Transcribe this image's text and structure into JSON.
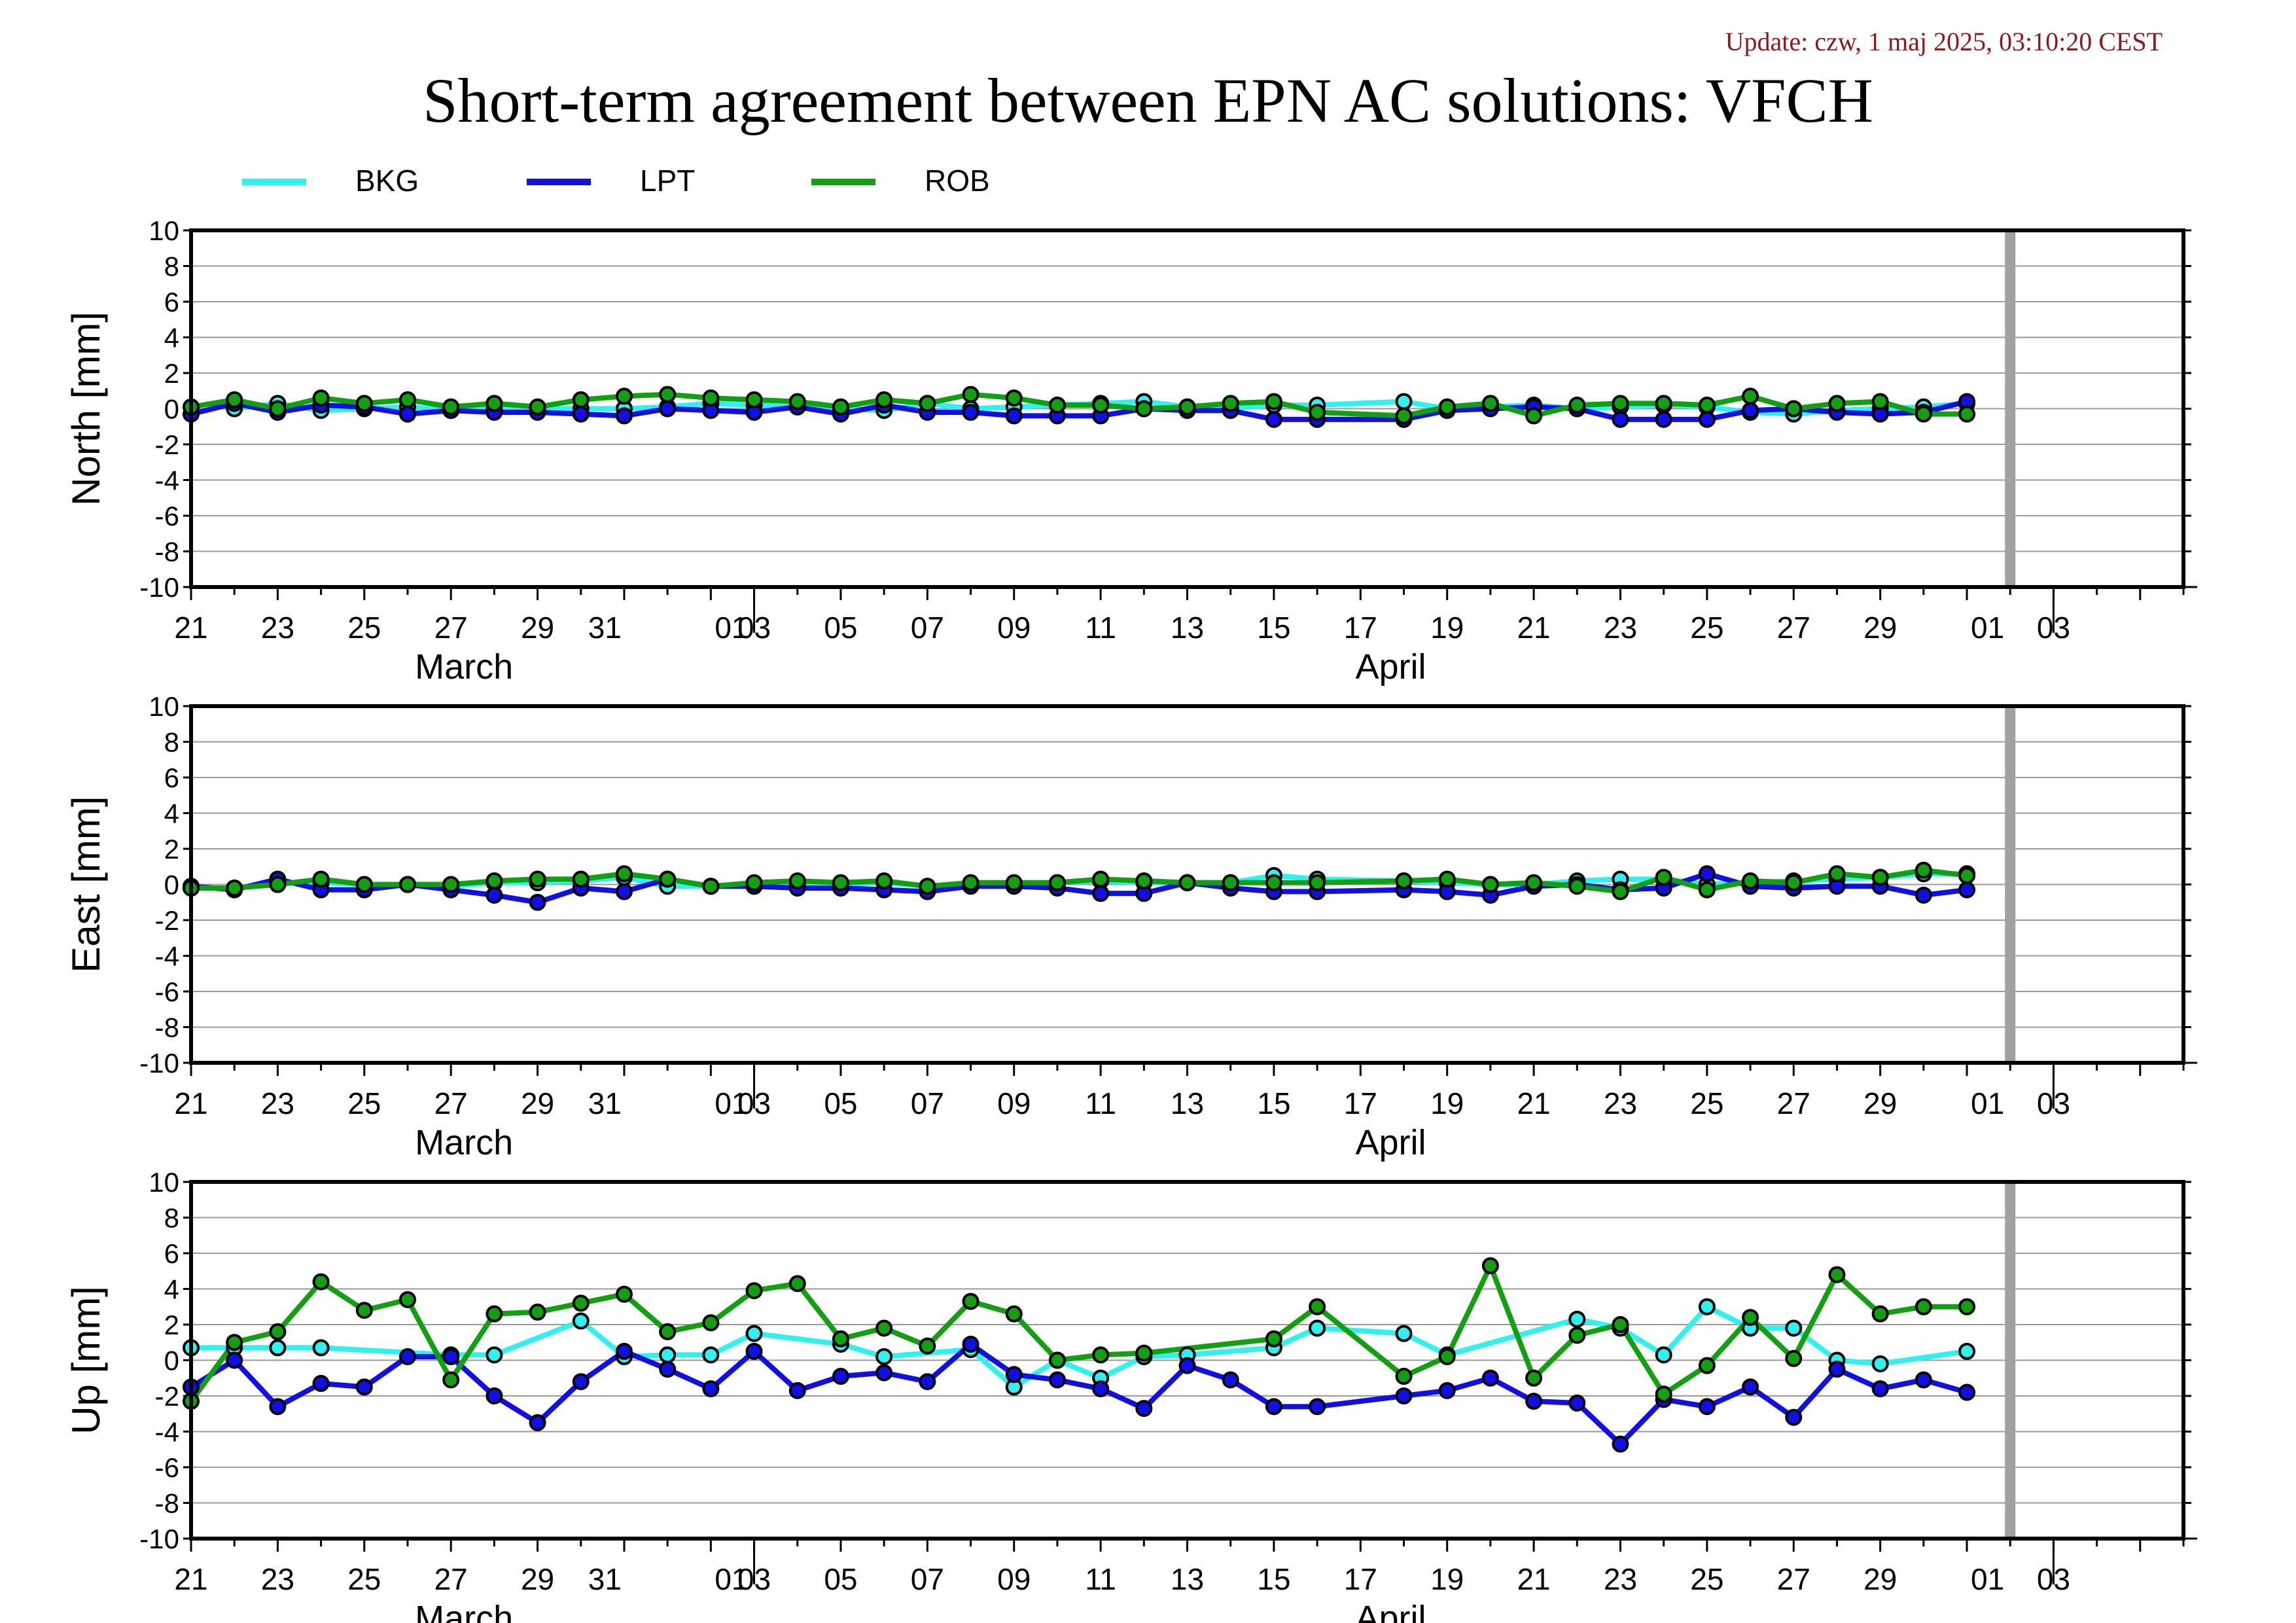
{
  "update_text": "Update: czw, 1 maj 2025, 03:10:20 CEST",
  "title": "Short-term agreement between EPN AC solutions: VFCH",
  "colors": {
    "BKG": "#2ef2f2",
    "LPT": "#1010e6",
    "ROB": "#10a010",
    "gap_bar": "#a0a0a0",
    "grid": "#999999"
  },
  "legend": [
    {
      "name": "BKG",
      "color": "#2ef2f2"
    },
    {
      "name": "LPT",
      "color": "#1010e6"
    },
    {
      "name": "ROB",
      "color": "#10a010"
    }
  ],
  "chart_data": [
    {
      "type": "line",
      "ylabel": "North [mm]",
      "ylim": [
        -10,
        10
      ],
      "yticks": [
        10,
        8,
        6,
        4,
        2,
        0,
        -2,
        -4,
        -6,
        -8,
        -10
      ],
      "xlim": [
        "2025-03-19",
        "2025-05-04"
      ],
      "x_tick_labels": [
        "21",
        "23",
        "25",
        "27",
        "29",
        "31",
        "01",
        "03",
        "05",
        "07",
        "09",
        "11",
        "13",
        "15",
        "17",
        "19",
        "21",
        "23",
        "25",
        "27",
        "29",
        "01",
        "03"
      ],
      "month_labels": [
        "March",
        "April"
      ],
      "grid": "horizontal",
      "data_gap_marker": "2025-04-30",
      "series": [
        {
          "name": "BKG",
          "x": [
            "2025-03-20",
            "2025-03-21",
            "2025-03-22",
            "2025-03-23",
            "2025-03-24",
            "2025-03-25",
            "2025-03-26",
            "2025-03-27",
            "2025-03-28",
            "2025-03-29",
            "2025-03-30",
            "2025-03-31",
            "2025-04-01",
            "2025-04-02",
            "2025-04-03",
            "2025-04-04",
            "2025-04-05",
            "2025-04-06",
            "2025-04-07",
            "2025-04-08",
            "2025-04-09",
            "2025-04-10",
            "2025-04-11",
            "2025-04-12",
            "2025-04-13",
            "2025-04-14",
            "2025-04-16",
            "2025-04-17",
            "2025-04-18",
            "2025-04-19",
            "2025-04-20",
            "2025-04-21",
            "2025-04-22",
            "2025-04-23",
            "2025-04-24",
            "2025-04-25",
            "2025-04-26",
            "2025-04-27",
            "2025-04-28",
            "2025-04-29"
          ],
          "values": [
            0.0,
            0.3,
            -0.1,
            0.0,
            0.1,
            -0.1,
            0.0,
            0.0,
            0.0,
            0.0,
            0.1,
            0.3,
            0.2,
            0.1,
            0.0,
            -0.1,
            0.3,
            0.0,
            0.1,
            0.2,
            0.3,
            0.4,
            0.1,
            0.0,
            0.2,
            0.2,
            0.4,
            0.0,
            0.1,
            0.2,
            0.0,
            0.1,
            0.2,
            0.1,
            -0.2,
            -0.3,
            -0.1,
            0.0,
            0.1,
            0.3
          ]
        },
        {
          "name": "LPT",
          "x": [
            "2025-03-19",
            "2025-03-20",
            "2025-03-21",
            "2025-03-22",
            "2025-03-23",
            "2025-03-24",
            "2025-03-25",
            "2025-03-26",
            "2025-03-27",
            "2025-03-28",
            "2025-03-29",
            "2025-03-30",
            "2025-03-31",
            "2025-04-01",
            "2025-04-02",
            "2025-04-03",
            "2025-04-04",
            "2025-04-05",
            "2025-04-06",
            "2025-04-07",
            "2025-04-08",
            "2025-04-09",
            "2025-04-10",
            "2025-04-11",
            "2025-04-12",
            "2025-04-13",
            "2025-04-14",
            "2025-04-16",
            "2025-04-17",
            "2025-04-18",
            "2025-04-19",
            "2025-04-20",
            "2025-04-21",
            "2025-04-22",
            "2025-04-23",
            "2025-04-24",
            "2025-04-25",
            "2025-04-26",
            "2025-04-27",
            "2025-04-28",
            "2025-04-29"
          ],
          "values": [
            -0.3,
            0.3,
            -0.2,
            0.2,
            0.1,
            -0.3,
            -0.1,
            -0.2,
            -0.2,
            -0.3,
            -0.4,
            0.0,
            -0.1,
            -0.2,
            0.1,
            -0.3,
            0.2,
            -0.2,
            -0.2,
            -0.4,
            -0.4,
            -0.4,
            0.0,
            -0.1,
            -0.1,
            -0.6,
            -0.6,
            -0.6,
            -0.1,
            0.0,
            0.1,
            0.0,
            -0.6,
            -0.6,
            -0.6,
            -0.1,
            0.0,
            -0.2,
            -0.3,
            -0.2,
            0.4
          ]
        },
        {
          "name": "ROB",
          "x": [
            "2025-03-19",
            "2025-03-20",
            "2025-03-21",
            "2025-03-22",
            "2025-03-23",
            "2025-03-24",
            "2025-03-25",
            "2025-03-26",
            "2025-03-27",
            "2025-03-28",
            "2025-03-29",
            "2025-03-30",
            "2025-03-31",
            "2025-04-01",
            "2025-04-02",
            "2025-04-03",
            "2025-04-04",
            "2025-04-05",
            "2025-04-06",
            "2025-04-07",
            "2025-04-08",
            "2025-04-09",
            "2025-04-10",
            "2025-04-11",
            "2025-04-12",
            "2025-04-13",
            "2025-04-14",
            "2025-04-16",
            "2025-04-17",
            "2025-04-18",
            "2025-04-19",
            "2025-04-20",
            "2025-04-21",
            "2025-04-22",
            "2025-04-23",
            "2025-04-24",
            "2025-04-25",
            "2025-04-26",
            "2025-04-27",
            "2025-04-28",
            "2025-04-29"
          ],
          "values": [
            0.1,
            0.5,
            0.0,
            0.6,
            0.3,
            0.5,
            0.1,
            0.3,
            0.1,
            0.5,
            0.7,
            0.8,
            0.6,
            0.5,
            0.4,
            0.1,
            0.5,
            0.3,
            0.8,
            0.6,
            0.2,
            0.2,
            0.0,
            0.1,
            0.3,
            0.4,
            -0.2,
            -0.4,
            0.1,
            0.3,
            -0.4,
            0.2,
            0.3,
            0.3,
            0.2,
            0.7,
            0.0,
            0.3,
            0.4,
            -0.3,
            -0.3
          ]
        }
      ]
    },
    {
      "type": "line",
      "ylabel": "East [mm]",
      "ylim": [
        -10,
        10
      ],
      "yticks": [
        10,
        8,
        6,
        4,
        2,
        0,
        -2,
        -4,
        -6,
        -8,
        -10
      ],
      "xlim": [
        "2025-03-19",
        "2025-05-04"
      ],
      "x_tick_labels": [
        "21",
        "23",
        "25",
        "27",
        "29",
        "31",
        "01",
        "03",
        "05",
        "07",
        "09",
        "11",
        "13",
        "15",
        "17",
        "19",
        "21",
        "23",
        "25",
        "27",
        "29",
        "01",
        "03"
      ],
      "month_labels": [
        "March",
        "April"
      ],
      "grid": "horizontal",
      "data_gap_marker": "2025-04-30",
      "series": [
        {
          "name": "BKG",
          "x": [
            "2025-03-19",
            "2025-03-20",
            "2025-03-21",
            "2025-03-22",
            "2025-03-23",
            "2025-03-24",
            "2025-03-25",
            "2025-03-26",
            "2025-03-27",
            "2025-03-28",
            "2025-03-29",
            "2025-03-30",
            "2025-03-31",
            "2025-04-01",
            "2025-04-02",
            "2025-04-03",
            "2025-04-04",
            "2025-04-05",
            "2025-04-06",
            "2025-04-07",
            "2025-04-08",
            "2025-04-09",
            "2025-04-10",
            "2025-04-11",
            "2025-04-12",
            "2025-04-13",
            "2025-04-14",
            "2025-04-16",
            "2025-04-17",
            "2025-04-18",
            "2025-04-19",
            "2025-04-20",
            "2025-04-21",
            "2025-04-22",
            "2025-04-23",
            "2025-04-24",
            "2025-04-25",
            "2025-04-26",
            "2025-04-27",
            "2025-04-28",
            "2025-04-29"
          ],
          "values": [
            -0.2,
            -0.2,
            0.1,
            0.1,
            0.0,
            0.0,
            -0.1,
            0.1,
            0.1,
            0.2,
            0.4,
            -0.1,
            -0.1,
            -0.1,
            0.0,
            0.0,
            0.1,
            -0.1,
            0.0,
            0.0,
            0.1,
            0.2,
            0.1,
            0.1,
            0.1,
            0.5,
            0.3,
            0.2,
            0.1,
            0.0,
            0.0,
            0.2,
            0.3,
            0.3,
            0.0,
            0.1,
            0.2,
            0.3,
            0.4,
            0.6,
            0.6
          ]
        },
        {
          "name": "LPT",
          "x": [
            "2025-03-19",
            "2025-03-20",
            "2025-03-21",
            "2025-03-22",
            "2025-03-23",
            "2025-03-24",
            "2025-03-25",
            "2025-03-26",
            "2025-03-27",
            "2025-03-28",
            "2025-03-29",
            "2025-03-30",
            "2025-03-31",
            "2025-04-01",
            "2025-04-02",
            "2025-04-03",
            "2025-04-04",
            "2025-04-05",
            "2025-04-06",
            "2025-04-07",
            "2025-04-08",
            "2025-04-09",
            "2025-04-10",
            "2025-04-11",
            "2025-04-12",
            "2025-04-13",
            "2025-04-14",
            "2025-04-16",
            "2025-04-17",
            "2025-04-18",
            "2025-04-19",
            "2025-04-20",
            "2025-04-21",
            "2025-04-22",
            "2025-04-23",
            "2025-04-24",
            "2025-04-25",
            "2025-04-26",
            "2025-04-27",
            "2025-04-28",
            "2025-04-29"
          ],
          "values": [
            -0.1,
            -0.3,
            0.3,
            -0.3,
            -0.3,
            0.0,
            -0.3,
            -0.6,
            -1.0,
            -0.2,
            -0.4,
            0.3,
            -0.1,
            -0.1,
            -0.2,
            -0.2,
            -0.3,
            -0.4,
            -0.1,
            -0.1,
            -0.2,
            -0.5,
            -0.5,
            0.1,
            -0.2,
            -0.4,
            -0.4,
            -0.3,
            -0.4,
            -0.6,
            -0.1,
            0.0,
            -0.3,
            -0.2,
            0.6,
            -0.1,
            -0.2,
            -0.1,
            -0.1,
            -0.6,
            -0.3
          ]
        },
        {
          "name": "ROB",
          "x": [
            "2025-03-19",
            "2025-03-20",
            "2025-03-21",
            "2025-03-22",
            "2025-03-23",
            "2025-03-24",
            "2025-03-25",
            "2025-03-26",
            "2025-03-27",
            "2025-03-28",
            "2025-03-29",
            "2025-03-30",
            "2025-03-31",
            "2025-04-01",
            "2025-04-02",
            "2025-04-03",
            "2025-04-04",
            "2025-04-05",
            "2025-04-06",
            "2025-04-07",
            "2025-04-08",
            "2025-04-09",
            "2025-04-10",
            "2025-04-11",
            "2025-04-12",
            "2025-04-13",
            "2025-04-14",
            "2025-04-16",
            "2025-04-17",
            "2025-04-18",
            "2025-04-19",
            "2025-04-20",
            "2025-04-21",
            "2025-04-22",
            "2025-04-23",
            "2025-04-24",
            "2025-04-25",
            "2025-04-26",
            "2025-04-27",
            "2025-04-28",
            "2025-04-29"
          ],
          "values": [
            -0.2,
            -0.2,
            0.0,
            0.3,
            0.0,
            0.0,
            0.0,
            0.2,
            0.3,
            0.3,
            0.6,
            0.3,
            -0.1,
            0.1,
            0.2,
            0.1,
            0.2,
            -0.1,
            0.1,
            0.1,
            0.1,
            0.3,
            0.2,
            0.1,
            0.1,
            0.1,
            0.1,
            0.2,
            0.3,
            0.0,
            0.1,
            -0.1,
            -0.4,
            0.4,
            -0.3,
            0.2,
            0.1,
            0.6,
            0.4,
            0.8,
            0.5
          ]
        }
      ]
    },
    {
      "type": "line",
      "ylabel": "Up [mm]",
      "ylim": [
        -10,
        10
      ],
      "yticks": [
        10,
        8,
        6,
        4,
        2,
        0,
        -2,
        -4,
        -6,
        -8,
        -10
      ],
      "xlim": [
        "2025-03-19",
        "2025-05-04"
      ],
      "x_tick_labels": [
        "21",
        "23",
        "25",
        "27",
        "29",
        "31",
        "01",
        "03",
        "05",
        "07",
        "09",
        "11",
        "13",
        "15",
        "17",
        "19",
        "21",
        "23",
        "25",
        "27",
        "29",
        "01",
        "03"
      ],
      "month_labels": [
        "March",
        "April"
      ],
      "grid": "horizontal",
      "data_gap_marker": "2025-04-30",
      "series": [
        {
          "name": "BKG",
          "x": [
            "2025-03-19",
            "2025-03-20",
            "2025-03-21",
            "2025-03-22",
            "2025-03-25",
            "2025-03-26",
            "2025-03-28",
            "2025-03-29",
            "2025-03-30",
            "2025-03-31",
            "2025-04-01",
            "2025-04-03",
            "2025-04-04",
            "2025-04-06",
            "2025-04-07",
            "2025-04-08",
            "2025-04-09",
            "2025-04-10",
            "2025-04-11",
            "2025-04-13",
            "2025-04-14",
            "2025-04-16",
            "2025-04-17",
            "2025-04-20",
            "2025-04-21",
            "2025-04-22",
            "2025-04-23",
            "2025-04-24",
            "2025-04-25",
            "2025-04-26",
            "2025-04-27",
            "2025-04-29"
          ],
          "values": [
            0.7,
            0.7,
            0.7,
            0.7,
            0.3,
            0.3,
            2.2,
            0.2,
            0.3,
            0.3,
            1.5,
            0.9,
            0.2,
            0.6,
            -1.5,
            0.0,
            -1.0,
            0.2,
            0.3,
            0.7,
            1.8,
            1.5,
            0.3,
            2.3,
            1.8,
            0.3,
            3.0,
            1.8,
            1.8,
            0.0,
            -0.2,
            0.5
          ]
        },
        {
          "name": "LPT",
          "x": [
            "2025-03-19",
            "2025-03-20",
            "2025-03-21",
            "2025-03-22",
            "2025-03-23",
            "2025-03-24",
            "2025-03-25",
            "2025-03-26",
            "2025-03-27",
            "2025-03-28",
            "2025-03-29",
            "2025-03-30",
            "2025-03-31",
            "2025-04-01",
            "2025-04-02",
            "2025-04-03",
            "2025-04-04",
            "2025-04-05",
            "2025-04-06",
            "2025-04-07",
            "2025-04-08",
            "2025-04-09",
            "2025-04-10",
            "2025-04-11",
            "2025-04-12",
            "2025-04-13",
            "2025-04-14",
            "2025-04-16",
            "2025-04-17",
            "2025-04-18",
            "2025-04-19",
            "2025-04-20",
            "2025-04-21",
            "2025-04-22",
            "2025-04-23",
            "2025-04-24",
            "2025-04-25",
            "2025-04-26",
            "2025-04-27",
            "2025-04-28",
            "2025-04-29"
          ],
          "values": [
            -1.5,
            0.0,
            -2.6,
            -1.3,
            -1.5,
            0.2,
            0.2,
            -2.0,
            -3.5,
            -1.2,
            0.5,
            -0.5,
            -1.6,
            0.5,
            -1.7,
            -0.9,
            -0.7,
            -1.2,
            0.9,
            -0.8,
            -1.1,
            -1.6,
            -2.7,
            -0.3,
            -1.1,
            -2.6,
            -2.6,
            -2.0,
            -1.7,
            -1.0,
            -2.3,
            -2.4,
            -4.7,
            -2.2,
            -2.6,
            -1.5,
            -3.2,
            -0.5,
            -1.6,
            -1.1,
            -1.8
          ]
        },
        {
          "name": "ROB",
          "x": [
            "2025-03-19",
            "2025-03-20",
            "2025-03-21",
            "2025-03-22",
            "2025-03-23",
            "2025-03-24",
            "2025-03-25",
            "2025-03-26",
            "2025-03-27",
            "2025-03-28",
            "2025-03-29",
            "2025-03-30",
            "2025-03-31",
            "2025-04-01",
            "2025-04-02",
            "2025-04-03",
            "2025-04-04",
            "2025-04-05",
            "2025-04-06",
            "2025-04-07",
            "2025-04-08",
            "2025-04-09",
            "2025-04-10",
            "2025-04-13",
            "2025-04-14",
            "2025-04-16",
            "2025-04-17",
            "2025-04-18",
            "2025-04-19",
            "2025-04-20",
            "2025-04-21",
            "2025-04-22",
            "2025-04-23",
            "2025-04-24",
            "2025-04-25",
            "2025-04-26",
            "2025-04-27",
            "2025-04-28",
            "2025-04-29"
          ],
          "values": [
            -2.3,
            1.0,
            1.6,
            4.4,
            2.8,
            3.4,
            -1.1,
            2.6,
            2.7,
            3.2,
            3.7,
            1.6,
            2.1,
            3.9,
            4.3,
            1.2,
            1.8,
            0.8,
            3.3,
            2.6,
            0.0,
            0.3,
            0.4,
            1.2,
            3.0,
            -0.9,
            0.2,
            5.3,
            -1.0,
            1.4,
            2.0,
            -1.9,
            -0.3,
            2.4,
            0.1,
            4.8,
            2.6,
            3.0,
            3.0
          ]
        }
      ]
    }
  ]
}
